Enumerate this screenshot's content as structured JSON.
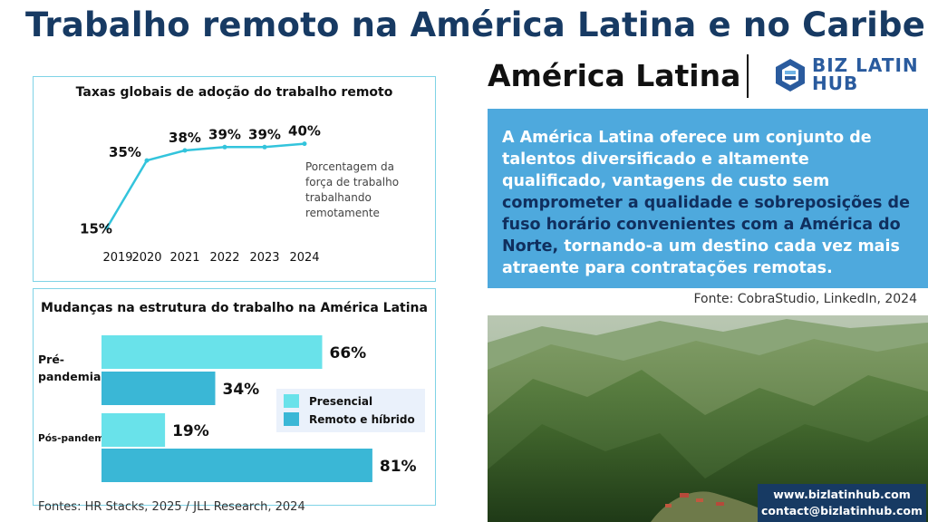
{
  "header": {
    "title": "Trabalho remoto na América Latina e no Caribe:",
    "subtitle": "América Latina",
    "logo_text_top": "BIZ LATIN",
    "logo_text_bottom": "HUB"
  },
  "colors": {
    "title": "#173a63",
    "panel_border": "#7fd3e6",
    "line": "#33c4dc",
    "presencial": "#69e2ea",
    "remoto": "#3ab7d6",
    "info_bg": "#4ea9dd",
    "info_highlight": "#102f5e",
    "contact_bg": "#173a63"
  },
  "info": {
    "text_before": "A América Latina oferece um conjunto de talentos diversificado e altamente qualificado, vantagens de custo sem ",
    "text_highlight": "comprometer a qualidade e sobreposições de fuso horário convenientes com a América do Norte,",
    "text_after": " tornando-a um destino cada vez mais atraente para contratações remotas."
  },
  "sources": {
    "right": "Fonte: CobraStudio, LinkedIn, 2024",
    "left": "Fontes: HR Stacks, 2025 / JLL Research, 2024"
  },
  "contact": {
    "website": "www.bizlatinhub.com",
    "email": "contact@bizlatinhub.com"
  },
  "chart_data": [
    {
      "type": "line",
      "title": "Taxas globais de adoção do trabalho remoto",
      "x": [
        "2019",
        "2020",
        "2021",
        "2022",
        "2023",
        "2024"
      ],
      "series": [
        {
          "values": [
            15,
            35,
            38,
            39,
            39,
            40
          ]
        }
      ],
      "data_labels": [
        "15%",
        "35%",
        "38%",
        "39%",
        "39%",
        "40%"
      ],
      "annotation": "Porcentagem da força de trabalho trabalhando remotamente",
      "ylim": [
        10,
        45
      ],
      "grid": false,
      "legend": "none"
    },
    {
      "type": "bar",
      "orientation": "horizontal",
      "title": "Mudanças na estrutura do trabalho na América Latina",
      "categories": [
        "Pré-pandemia",
        "Pós-pandemia"
      ],
      "series": [
        {
          "name": "Presencial",
          "values": [
            66,
            19
          ]
        },
        {
          "name": "Remoto e híbrido",
          "values": [
            34,
            81
          ]
        }
      ],
      "data_labels": [
        [
          "66%",
          "34%"
        ],
        [
          "19%",
          "81%"
        ]
      ],
      "xlim": [
        0,
        100
      ],
      "legend": "right"
    }
  ]
}
